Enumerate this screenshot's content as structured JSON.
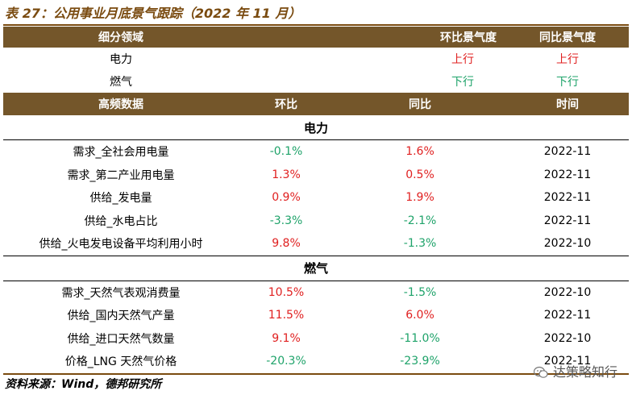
{
  "title": "表 27：公用事业月底景气跟踪（2022 年 11 月）",
  "summary": {
    "headers": [
      "细分领域",
      "环比景气度",
      "同比景气度"
    ],
    "rows": [
      {
        "field": "电力",
        "mom": "上行",
        "yoy": "上行"
      },
      {
        "field": "燃气",
        "mom": "下行",
        "yoy": "下行"
      }
    ]
  },
  "detail": {
    "headers": [
      "高频数据",
      "环比",
      "同比",
      "时间"
    ],
    "sections": [
      {
        "name": "电力",
        "rows": [
          {
            "item": "需求_全社会用电量",
            "mom": "-0.1%",
            "yoy": "1.6%",
            "time": "2022-11"
          },
          {
            "item": "需求_第二产业用电量",
            "mom": "1.3%",
            "yoy": "0.5%",
            "time": "2022-11"
          },
          {
            "item": "供给_发电量",
            "mom": "0.9%",
            "yoy": "1.9%",
            "time": "2022-11"
          },
          {
            "item": "供给_水电占比",
            "mom": "-3.3%",
            "yoy": "-2.1%",
            "time": "2022-11"
          },
          {
            "item": "供给_火电发电设备平均利用小时",
            "mom": "9.8%",
            "yoy": "-1.3%",
            "time": "2022-10"
          }
        ]
      },
      {
        "name": "燃气",
        "rows": [
          {
            "item": "需求_天然气表观消费量",
            "mom": "10.5%",
            "yoy": "-1.5%",
            "time": "2022-10"
          },
          {
            "item": "供给_国内天然气产量",
            "mom": "11.5%",
            "yoy": "6.0%",
            "time": "2022-11"
          },
          {
            "item": "供给_进口天然气数量",
            "mom": "9.1%",
            "yoy": "-11.0%",
            "time": "2022-10"
          },
          {
            "item": "价格_LNG 天然气价格",
            "mom": "-20.3%",
            "yoy": "-23.9%",
            "time": "2022-11"
          }
        ]
      }
    ]
  },
  "source": "资料来源：Wind，德邦研究所",
  "watermark": "达策略知行",
  "colors": {
    "header_bg": "#74562a",
    "up": "#e02020",
    "down": "#1fa36a",
    "title": "#7a4b10"
  }
}
